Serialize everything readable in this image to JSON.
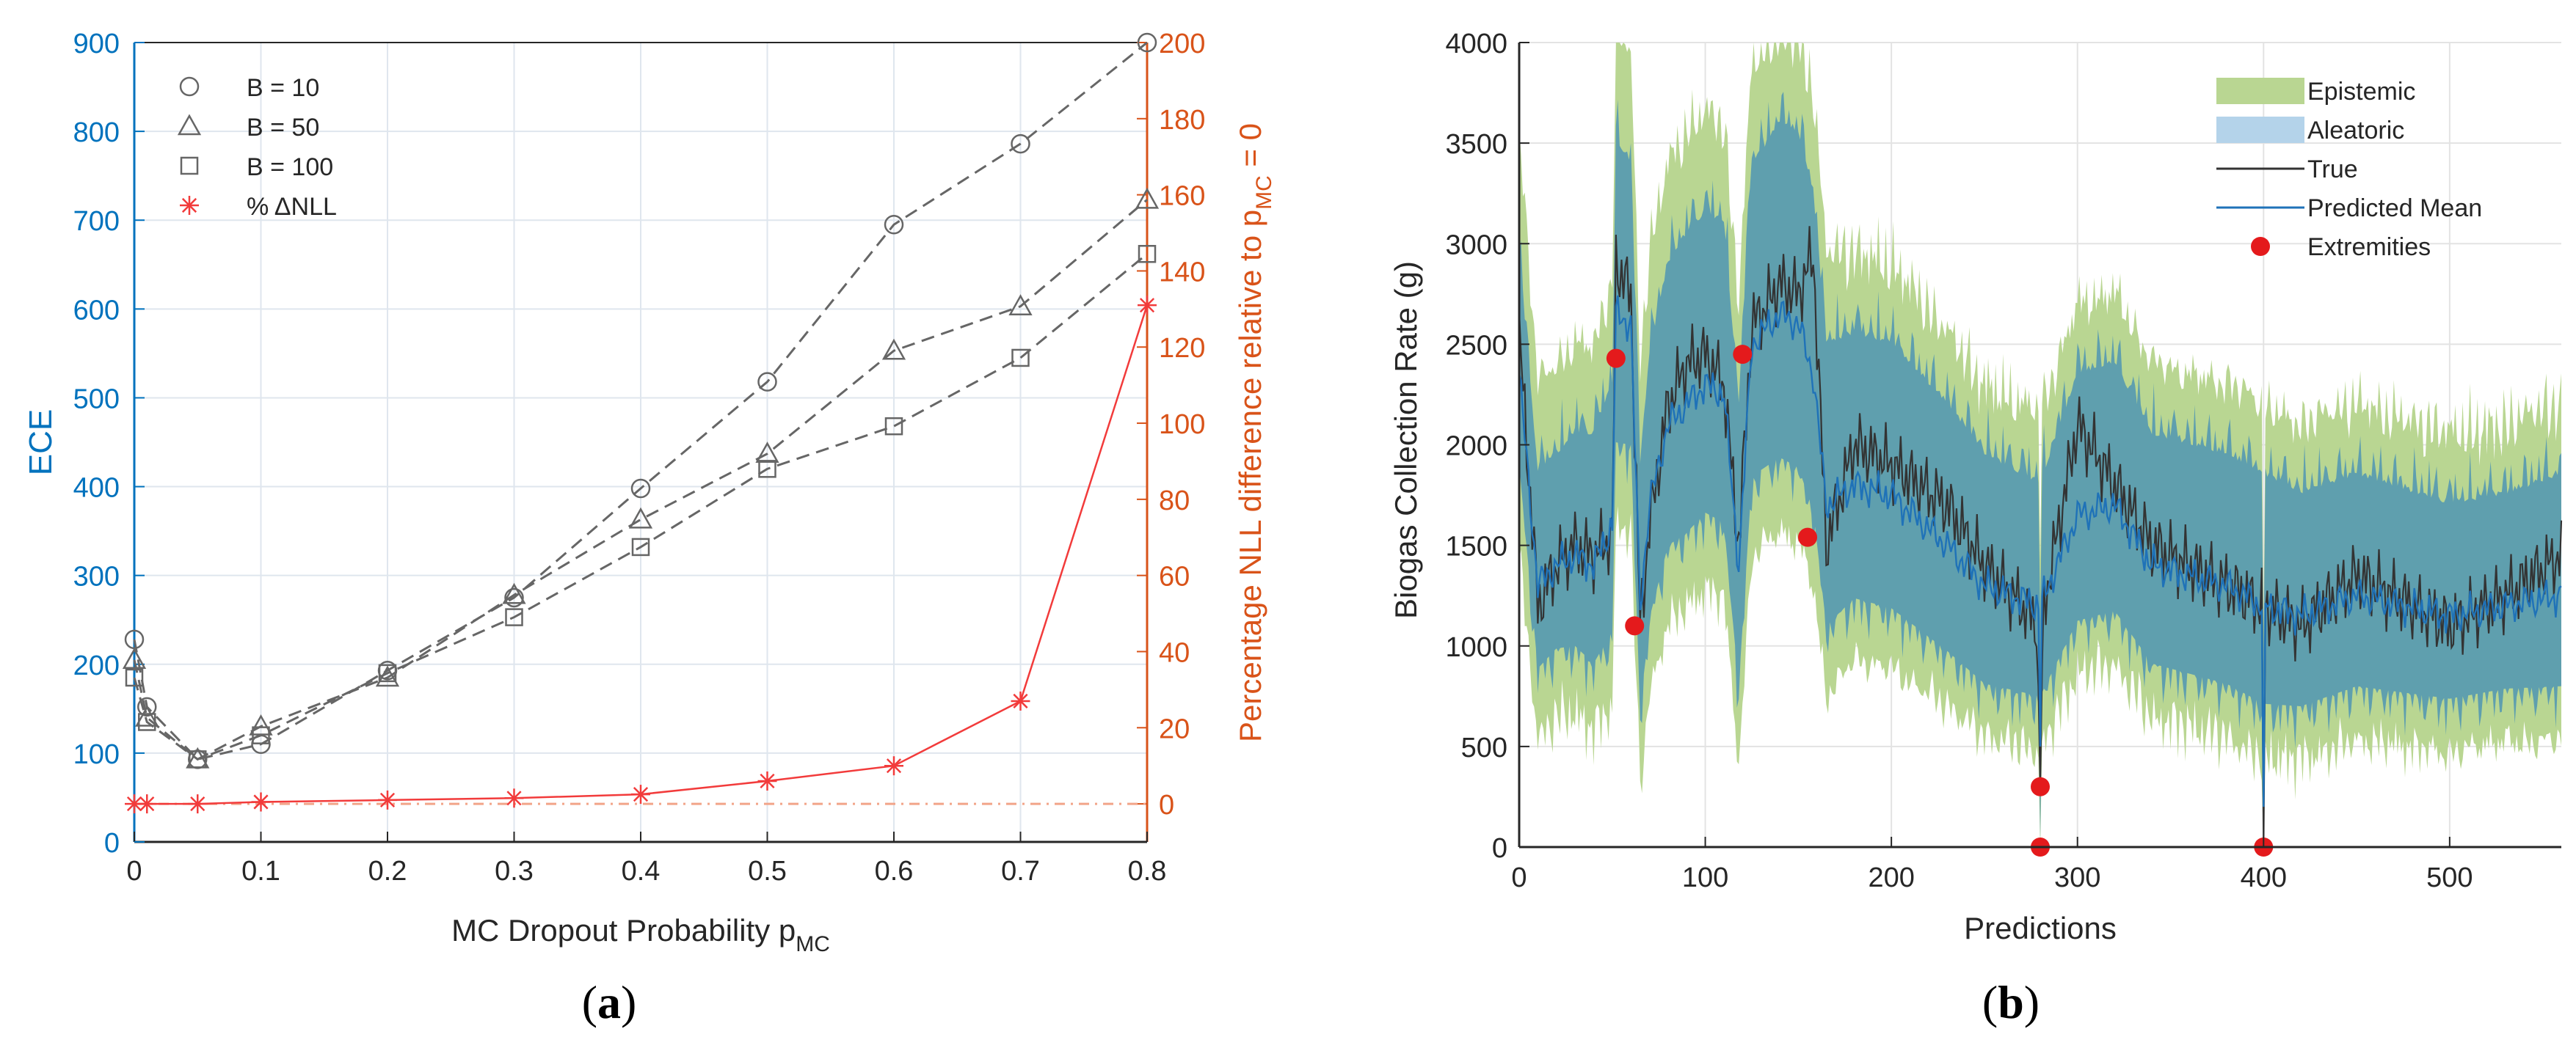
{
  "captions": {
    "a_open": "(",
    "a_letter": "a",
    "a_close": ")",
    "b_open": "(",
    "b_letter": "b",
    "b_close": ")"
  },
  "chart_data": [
    {
      "type": "line",
      "panel": "a",
      "xlabel": "MC Dropout Probability p",
      "xlabel_sub": "MC",
      "ylabel": "ECE",
      "ylabel_right": "Percentage NLL difference relative to p",
      "ylabel_right_sub": "MC",
      "ylabel_right_tail": " = 0",
      "xlim": [
        0,
        0.8
      ],
      "ylim": [
        0,
        900
      ],
      "ylim_right": [
        -10,
        200
      ],
      "xticks": [
        0,
        0.1,
        0.2,
        0.3,
        0.4,
        0.5,
        0.6,
        0.7,
        0.8
      ],
      "xtick_labels": [
        "0",
        "0.1",
        "0.2",
        "0.3",
        "0.4",
        "0.5",
        "0.6",
        "0.7",
        "0.8"
      ],
      "yticks": [
        0,
        100,
        200,
        300,
        400,
        500,
        600,
        700,
        800,
        900
      ],
      "yticks_right": [
        0,
        20,
        40,
        60,
        80,
        100,
        120,
        140,
        160,
        180,
        200
      ],
      "grid": true,
      "colors": {
        "left_axis": "#0072bd",
        "right_axis": "#d95319",
        "series_gray": "#666666",
        "nll": "#f23b3b"
      },
      "x": [
        0,
        0.01,
        0.05,
        0.1,
        0.2,
        0.3,
        0.4,
        0.5,
        0.6,
        0.7,
        0.8
      ],
      "series": [
        {
          "name": "B = 10",
          "marker": "circle",
          "values": [
            228,
            152,
            93,
            110,
            193,
            275,
            398,
            518,
            695,
            786,
            900
          ]
        },
        {
          "name": "B = 50",
          "marker": "triangle",
          "values": [
            205,
            140,
            93,
            130,
            185,
            278,
            363,
            437,
            553,
            603,
            723
          ]
        },
        {
          "name": "B = 100",
          "marker": "square",
          "values": [
            185,
            135,
            93,
            120,
            190,
            253,
            332,
            420,
            468,
            545,
            662
          ]
        },
        {
          "name": "% ΔNLL",
          "marker": "star",
          "axis": "right",
          "values": [
            0,
            0,
            0,
            0.5,
            1,
            1.5,
            2.5,
            6,
            10,
            27,
            131
          ]
        }
      ]
    },
    {
      "type": "area",
      "panel": "b",
      "xlabel": "Predictions",
      "ylabel": "Biogas Collection Rate (g)",
      "xlim": [
        0,
        560
      ],
      "ylim": [
        0,
        4000
      ],
      "xticks": [
        0,
        100,
        200,
        300,
        400,
        500
      ],
      "yticks": [
        0,
        500,
        1000,
        1500,
        2000,
        2500,
        3000,
        3500,
        4000
      ],
      "grid": true,
      "colors": {
        "epistemic": "#b9d692",
        "aleatoric": "#5f9fae",
        "true": "#333333",
        "mean": "#1f72b8",
        "extremity": "#e41a1c"
      },
      "legend": [
        "Epistemic",
        "Aleatoric",
        "True",
        "Predicted Mean",
        "Extremities"
      ],
      "profile_x": [
        0,
        10,
        20,
        30,
        40,
        50,
        52,
        60,
        65,
        70,
        80,
        90,
        100,
        110,
        118,
        125,
        130,
        140,
        150,
        158,
        165,
        180,
        200,
        230,
        250,
        280,
        300,
        320,
        340,
        360,
        380,
        400,
        420,
        450,
        500,
        530,
        560
      ],
      "mean_profile": [
        2350,
        1300,
        1400,
        1450,
        1400,
        1600,
        2650,
        2600,
        1200,
        1700,
        2100,
        2200,
        2300,
        2250,
        1400,
        2500,
        2550,
        2650,
        2600,
        2350,
        1700,
        1800,
        1750,
        1500,
        1300,
        1200,
        1650,
        1700,
        1400,
        1350,
        1300,
        1200,
        1150,
        1250,
        1150,
        1200,
        1250
      ],
      "true_profile": [
        2550,
        1200,
        1400,
        1500,
        1450,
        1550,
        2900,
        2750,
        1100,
        1600,
        2200,
        2400,
        2450,
        2300,
        1500,
        2600,
        2650,
        2800,
        2750,
        2950,
        1500,
        2000,
        1900,
        1700,
        1400,
        1100,
        2100,
        1800,
        1500,
        1400,
        1300,
        1200,
        1100,
        1350,
        1100,
        1250,
        1450
      ],
      "aleatoric_width": [
        600,
        550,
        550,
        600,
        650,
        700,
        850,
        800,
        700,
        750,
        800,
        850,
        850,
        850,
        800,
        900,
        900,
        950,
        950,
        900,
        800,
        750,
        750,
        700,
        650,
        600,
        700,
        700,
        650,
        650,
        650,
        650,
        600,
        600,
        550,
        550,
        600
      ],
      "epistemic_width": [
        1100,
        900,
        900,
        950,
        1000,
        1100,
        1300,
        1250,
        1100,
        1150,
        1200,
        1250,
        1250,
        1250,
        1200,
        1300,
        1300,
        1350,
        1350,
        1300,
        1150,
        1050,
        1050,
        950,
        900,
        850,
        950,
        950,
        900,
        900,
        900,
        900,
        850,
        850,
        800,
        800,
        850
      ],
      "extremities": [
        [
          52,
          2430
        ],
        [
          62,
          1100
        ],
        [
          120,
          2450
        ],
        [
          155,
          1540
        ],
        [
          280,
          300
        ],
        [
          280,
          0
        ],
        [
          400,
          0
        ]
      ]
    }
  ]
}
